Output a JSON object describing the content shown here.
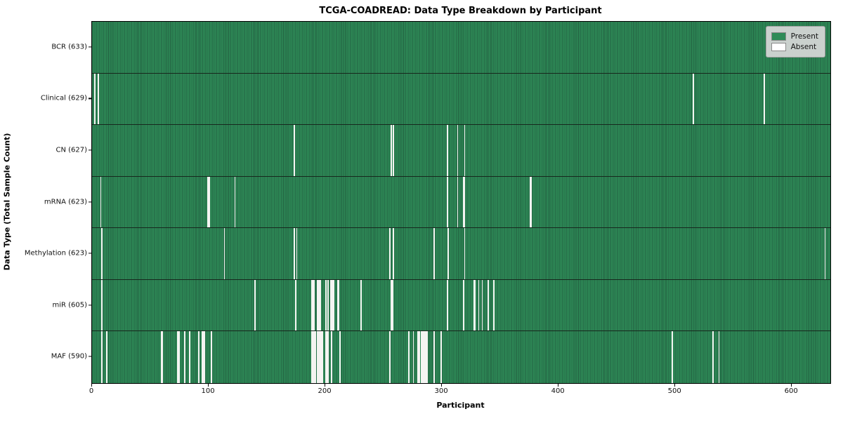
{
  "chart_data": {
    "type": "heatmap",
    "title": "TCGA-COADREAD: Data Type Breakdown by Participant",
    "xlabel": "Participant",
    "ylabel": "Data Type (Total Sample Count)",
    "legend": [
      "Present",
      "Absent"
    ],
    "legend_position": "upper right",
    "n_participants": 633,
    "x_range": [
      0,
      633
    ],
    "x_ticks": [
      0,
      100,
      200,
      300,
      400,
      500,
      600
    ],
    "grid": false,
    "colors": {
      "present": "#2e8b57",
      "present_edge": "#225f40",
      "absent": "#f4f4f2",
      "legend_bg": "#d8d8d8",
      "frame": "#000000"
    },
    "rows": [
      {
        "data_type": "BCR",
        "label": "BCR (633)",
        "total_samples": 633,
        "absent_count": 0,
        "absent_participants": []
      },
      {
        "data_type": "Clinical",
        "label": "Clinical (629)",
        "total_samples": 629,
        "absent_count": 4,
        "absent_participants": [
          2,
          5,
          515,
          576
        ]
      },
      {
        "data_type": "CN",
        "label": "CN (627)",
        "total_samples": 627,
        "absent_count": 6,
        "absent_participants": [
          173,
          256,
          258,
          304,
          313,
          319
        ]
      },
      {
        "data_type": "mRNA",
        "label": "mRNA (623)",
        "total_samples": 623,
        "absent_count": 10,
        "absent_participants": [
          7,
          99,
          100,
          122,
          304,
          313,
          318,
          319,
          375,
          376
        ]
      },
      {
        "data_type": "Methylation",
        "label": "Methylation (623)",
        "total_samples": 623,
        "absent_count": 10,
        "absent_participants": [
          8,
          113,
          173,
          175,
          255,
          258,
          293,
          305,
          319,
          628
        ]
      },
      {
        "data_type": "miR",
        "label": "miR (605)",
        "total_samples": 605,
        "absent_count": 28,
        "absent_participants": [
          8,
          139,
          174,
          188,
          189,
          190,
          193,
          194,
          195,
          200,
          202,
          204,
          205,
          206,
          207,
          210,
          211,
          230,
          256,
          257,
          304,
          318,
          327,
          328,
          331,
          334,
          339,
          344
        ]
      },
      {
        "data_type": "MAF",
        "label": "MAF (590)",
        "total_samples": 590,
        "absent_count": 43,
        "absent_participants": [
          8,
          12,
          59,
          60,
          73,
          74,
          79,
          83,
          91,
          94,
          95,
          96,
          102,
          188,
          189,
          190,
          191,
          193,
          194,
          195,
          196,
          197,
          200,
          201,
          202,
          205,
          212,
          255,
          271,
          275,
          279,
          280,
          282,
          283,
          284,
          285,
          286,
          287,
          293,
          299,
          497,
          532,
          537
        ]
      }
    ]
  }
}
